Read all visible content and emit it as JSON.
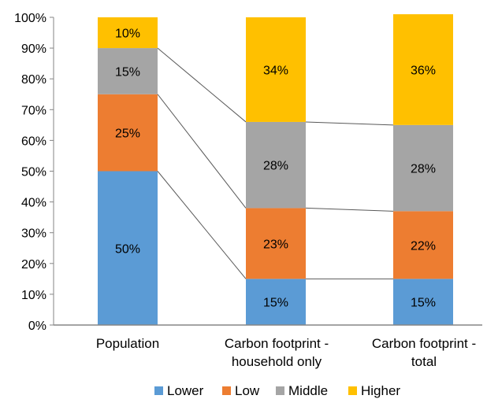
{
  "chart_data": {
    "type": "bar",
    "stacked": true,
    "percent": true,
    "categories": [
      [
        "Population"
      ],
      [
        "Carbon footprint -",
        "household only"
      ],
      [
        "Carbon footprint -",
        "total"
      ]
    ],
    "series": [
      {
        "name": "Lower",
        "color": "#5b9bd5",
        "values": [
          50,
          15,
          15
        ],
        "labels": [
          "50%",
          "15%",
          "15%"
        ]
      },
      {
        "name": "Low",
        "color": "#ed7d31",
        "values": [
          25,
          23,
          22
        ],
        "labels": [
          "25%",
          "23%",
          "22%"
        ]
      },
      {
        "name": "Middle",
        "color": "#a5a5a5",
        "values": [
          15,
          28,
          28
        ],
        "labels": [
          "15%",
          "28%",
          "28%"
        ]
      },
      {
        "name": "Higher",
        "color": "#ffc000",
        "values": [
          10,
          34,
          36
        ],
        "labels": [
          "10%",
          "34%",
          "36%"
        ]
      }
    ],
    "y_ticks": [
      "0%",
      "10%",
      "20%",
      "30%",
      "40%",
      "50%",
      "60%",
      "70%",
      "80%",
      "90%",
      "100%"
    ],
    "ylim": [
      0,
      100
    ],
    "grid": false,
    "series_lines": true,
    "legend_position": "bottom",
    "title": "",
    "xlabel": "",
    "ylabel": ""
  }
}
